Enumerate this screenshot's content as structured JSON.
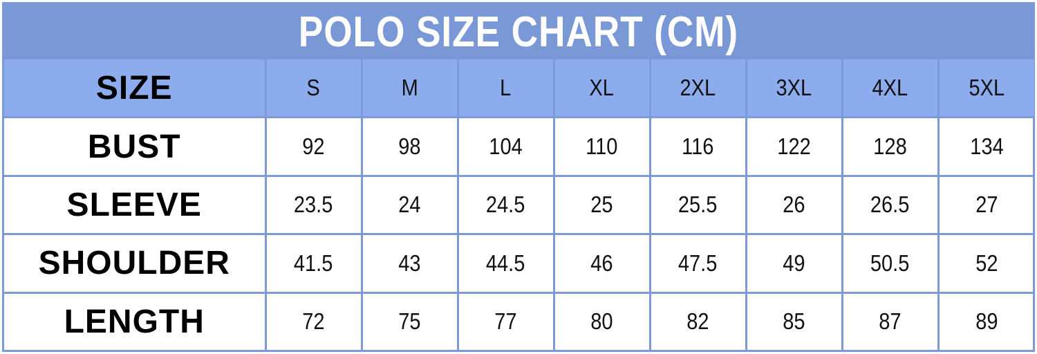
{
  "chart_data": {
    "type": "table",
    "title": "POLO SIZE CHART (CM)",
    "row_header": "SIZE",
    "columns": [
      "S",
      "M",
      "L",
      "XL",
      "2XL",
      "3XL",
      "4XL",
      "5XL"
    ],
    "rows": [
      {
        "label": "BUST",
        "values": [
          "92",
          "98",
          "104",
          "110",
          "116",
          "122",
          "128",
          "134"
        ]
      },
      {
        "label": "SLEEVE",
        "values": [
          "23.5",
          "24",
          "24.5",
          "25",
          "25.5",
          "26",
          "26.5",
          "27"
        ]
      },
      {
        "label": "SHOULDER",
        "values": [
          "41.5",
          "43",
          "44.5",
          "46",
          "47.5",
          "49",
          "50.5",
          "52"
        ]
      },
      {
        "label": "LENGTH",
        "values": [
          "72",
          "75",
          "77",
          "80",
          "82",
          "85",
          "87",
          "89"
        ]
      }
    ]
  },
  "colors": {
    "title_bg": "#7b98d6",
    "header_bg": "#8dacee",
    "grid": "#7d9ad8",
    "body_bg": "#ffffff"
  }
}
